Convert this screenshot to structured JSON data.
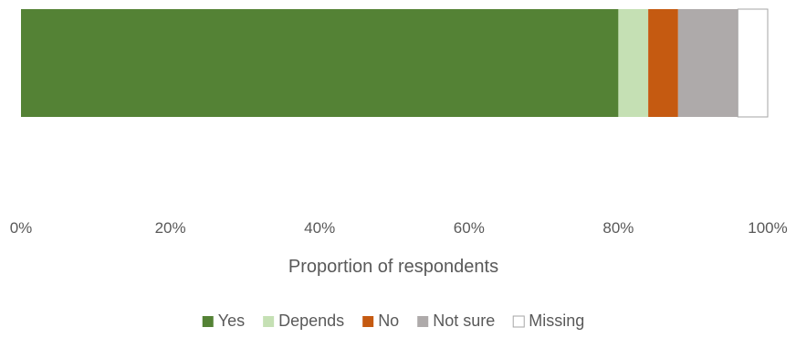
{
  "chart_data": {
    "type": "bar",
    "orientation": "horizontal",
    "stacked": true,
    "categories": [
      ""
    ],
    "series": [
      {
        "name": "Yes",
        "values": [
          0.8
        ],
        "color": "#548235"
      },
      {
        "name": "Depends",
        "values": [
          0.04
        ],
        "color": "#C5E0B4"
      },
      {
        "name": "No",
        "values": [
          0.04
        ],
        "color": "#C55A11"
      },
      {
        "name": "Not sure",
        "values": [
          0.08
        ],
        "color": "#AEAAAA"
      },
      {
        "name": "Missing",
        "values": [
          0.04
        ],
        "color": "#FFFFFF"
      }
    ],
    "xlabel": "Proportion of respondents",
    "xlim": [
      0,
      1
    ],
    "xticks": [
      "0%",
      "20%",
      "40%",
      "60%",
      "80%",
      "100%"
    ],
    "grid": false,
    "legend": "bottom"
  }
}
